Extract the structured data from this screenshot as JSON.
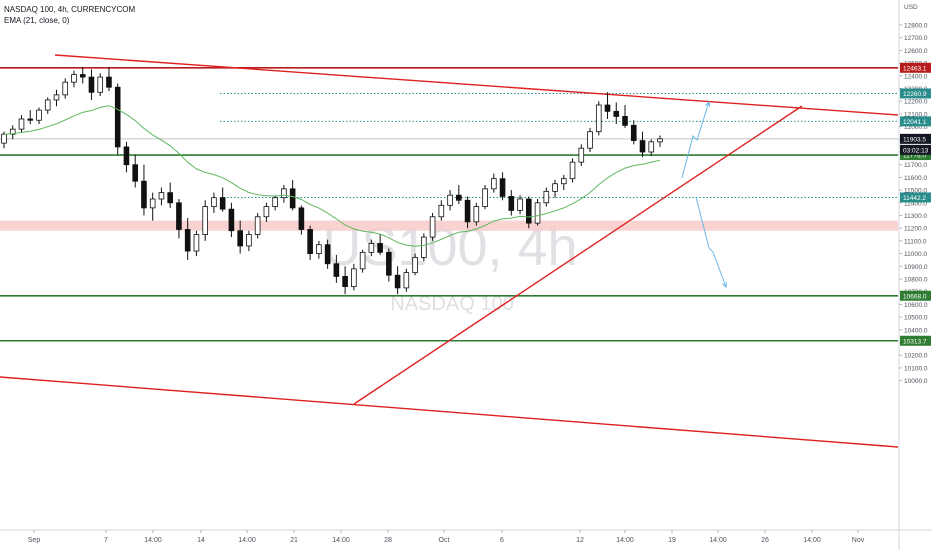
{
  "header": {
    "symbol_line": "NASDAQ 100, 4h, CURRENCYCOM",
    "indicator_line": "EMA (21, close, 0)",
    "currency": "USD"
  },
  "watermark": {
    "big": "US100, 4h",
    "small": "NASDAQ 100"
  },
  "colors": {
    "candle": "#111111",
    "ema": "#5fb75f",
    "resistance": "#b71c1c",
    "support": "#2e7d32",
    "trendline": "#e02020",
    "dotted": "#2b8c8c",
    "zone": "#f8caca",
    "arrow": "#6bb8e8",
    "current_price": "#b0b0b0"
  },
  "chart_data": {
    "type": "candlestick",
    "title": "NASDAQ 100, 4h, CURRENCYCOM",
    "indicator": "EMA (21, close, 0)",
    "ylim": [
      9990,
      12820
    ],
    "x_ticks": [
      "Sep",
      "7",
      "14:00",
      "14",
      "14:00",
      "21",
      "14:00",
      "28",
      "Oct",
      "6",
      "12",
      "14:00",
      "19",
      "14:00",
      "26",
      "14:00",
      "Nov",
      "4"
    ],
    "y_ticks": [
      10000,
      10100,
      10200,
      10300,
      10400,
      10500,
      10600,
      10700,
      10800,
      10900,
      11000,
      11100,
      11200,
      11300,
      11400,
      11500,
      11600,
      11700,
      11800,
      11900,
      12000,
      12100,
      12200,
      12300,
      12400,
      12500,
      12600,
      12700,
      12800
    ],
    "horizontal_levels": [
      {
        "value": 12463.1,
        "label": "12463.1",
        "style": "resistance"
      },
      {
        "value": 12260.9,
        "label": "12260.9",
        "style": "dotted"
      },
      {
        "value": 12041.1,
        "label": "12041.1",
        "style": "dotted"
      },
      {
        "value": 11776.0,
        "label": "11776.0",
        "style": "support"
      },
      {
        "value": 11442.2,
        "label": "11442.2",
        "style": "dotted"
      },
      {
        "value": 10668.0,
        "label": "10668.0",
        "style": "support"
      },
      {
        "value": 10313.7,
        "label": "10313.7",
        "style": "support"
      }
    ],
    "current_price": {
      "value": 11903.5,
      "label": "11903.5",
      "countdown": "03:02:13"
    },
    "zone": {
      "from": 11180,
      "to": 11260
    },
    "candles": [
      [
        11870,
        11960,
        11830,
        11940
      ],
      [
        11940,
        12010,
        11900,
        11980
      ],
      [
        11980,
        12090,
        11950,
        12060
      ],
      [
        12060,
        12130,
        12020,
        12050
      ],
      [
        12050,
        12150,
        12020,
        12130
      ],
      [
        12130,
        12230,
        12100,
        12210
      ],
      [
        12210,
        12290,
        12160,
        12250
      ],
      [
        12250,
        12380,
        12220,
        12350
      ],
      [
        12350,
        12440,
        12310,
        12410
      ],
      [
        12410,
        12470,
        12340,
        12390
      ],
      [
        12390,
        12450,
        12210,
        12270
      ],
      [
        12270,
        12420,
        12240,
        12390
      ],
      [
        12390,
        12470,
        12280,
        12310
      ],
      [
        12310,
        12340,
        11780,
        11840
      ],
      [
        11840,
        11880,
        11640,
        11700
      ],
      [
        11700,
        11780,
        11520,
        11570
      ],
      [
        11570,
        11700,
        11300,
        11360
      ],
      [
        11360,
        11480,
        11260,
        11430
      ],
      [
        11430,
        11520,
        11380,
        11480
      ],
      [
        11480,
        11560,
        11360,
        11400
      ],
      [
        11400,
        11430,
        11120,
        11190
      ],
      [
        11190,
        11280,
        10950,
        11020
      ],
      [
        11020,
        11180,
        10980,
        11150
      ],
      [
        11150,
        11420,
        11100,
        11370
      ],
      [
        11370,
        11480,
        11320,
        11440
      ],
      [
        11440,
        11520,
        11330,
        11350
      ],
      [
        11350,
        11400,
        11130,
        11180
      ],
      [
        11180,
        11260,
        11000,
        11060
      ],
      [
        11060,
        11180,
        11020,
        11150
      ],
      [
        11150,
        11320,
        11120,
        11290
      ],
      [
        11290,
        11400,
        11250,
        11370
      ],
      [
        11370,
        11460,
        11340,
        11440
      ],
      [
        11440,
        11540,
        11400,
        11510
      ],
      [
        11510,
        11580,
        11340,
        11360
      ],
      [
        11360,
        11380,
        11150,
        11190
      ],
      [
        11190,
        11220,
        10950,
        11000
      ],
      [
        11000,
        11100,
        10960,
        11070
      ],
      [
        11070,
        11110,
        10880,
        10920
      ],
      [
        10920,
        10990,
        10770,
        10820
      ],
      [
        10820,
        10900,
        10680,
        10740
      ],
      [
        10740,
        10920,
        10710,
        10880
      ],
      [
        10880,
        11030,
        10850,
        11010
      ],
      [
        11010,
        11110,
        10980,
        11080
      ],
      [
        11080,
        11150,
        10990,
        11010
      ],
      [
        11010,
        11040,
        10780,
        10830
      ],
      [
        10830,
        10900,
        10680,
        10730
      ],
      [
        10730,
        10880,
        10700,
        10850
      ],
      [
        10850,
        11000,
        10830,
        10970
      ],
      [
        10970,
        11160,
        10940,
        11130
      ],
      [
        11130,
        11320,
        11100,
        11290
      ],
      [
        11290,
        11420,
        11260,
        11380
      ],
      [
        11380,
        11500,
        11340,
        11460
      ],
      [
        11460,
        11540,
        11390,
        11420
      ],
      [
        11420,
        11450,
        11200,
        11250
      ],
      [
        11250,
        11400,
        11220,
        11370
      ],
      [
        11370,
        11540,
        11350,
        11510
      ],
      [
        11510,
        11630,
        11480,
        11590
      ],
      [
        11590,
        11640,
        11420,
        11450
      ],
      [
        11450,
        11500,
        11300,
        11340
      ],
      [
        11340,
        11460,
        11310,
        11430
      ],
      [
        11430,
        11450,
        11200,
        11240
      ],
      [
        11240,
        11430,
        11220,
        11400
      ],
      [
        11400,
        11520,
        11370,
        11490
      ],
      [
        11490,
        11580,
        11440,
        11550
      ],
      [
        11550,
        11620,
        11500,
        11590
      ],
      [
        11590,
        11750,
        11560,
        11720
      ],
      [
        11720,
        11860,
        11690,
        11830
      ],
      [
        11830,
        11990,
        11800,
        11960
      ],
      [
        11960,
        12200,
        11930,
        12170
      ],
      [
        12170,
        12270,
        12060,
        12120
      ],
      [
        12120,
        12190,
        12020,
        12080
      ],
      [
        12080,
        12170,
        11990,
        12010
      ],
      [
        12010,
        12050,
        11860,
        11890
      ],
      [
        11890,
        11960,
        11760,
        11800
      ],
      [
        11800,
        11900,
        11770,
        11880
      ],
      [
        11880,
        11930,
        11840,
        11903.5
      ]
    ]
  }
}
